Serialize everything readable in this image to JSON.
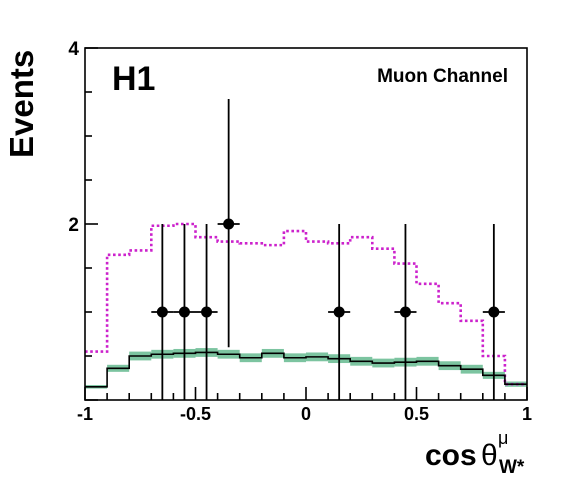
{
  "chart_data": {
    "type": "histogram",
    "experiment_label": "H1",
    "channel_label": "Muon Channel",
    "ylabel": "Events",
    "xlabel_main": "cos",
    "xlabel_theta": "θ",
    "xlabel_sup": "μ",
    "xlabel_sub": "W*",
    "xlim": [
      -1,
      1
    ],
    "ylim": [
      0,
      4
    ],
    "x_ticks": [
      -1,
      -0.5,
      0,
      0.5,
      1
    ],
    "x_tick_labels": [
      "-1",
      "-0.5",
      "0",
      "0.5",
      "1"
    ],
    "y_ticks": [
      2,
      4
    ],
    "y_tick_labels": [
      "2",
      "4"
    ],
    "bin_edges": [
      -1,
      -0.9,
      -0.8,
      -0.7,
      -0.6,
      -0.5,
      -0.4,
      -0.3,
      -0.2,
      -0.1,
      0,
      0.1,
      0.2,
      0.3,
      0.4,
      0.5,
      0.6,
      0.7,
      0.8,
      0.9,
      1
    ],
    "series": [
      {
        "kind": "dotted_step",
        "color": "#cc22cc",
        "values": [
          0.55,
          1.65,
          1.7,
          1.98,
          2.0,
          1.85,
          1.8,
          1.78,
          1.76,
          1.92,
          1.8,
          1.78,
          1.85,
          1.72,
          1.55,
          1.32,
          1.1,
          0.9,
          0.5,
          0.18
        ]
      },
      {
        "kind": "band_step",
        "line_color": "#000000",
        "band_color": "#7cc4a0",
        "values": [
          0.15,
          0.36,
          0.5,
          0.52,
          0.53,
          0.54,
          0.52,
          0.48,
          0.53,
          0.48,
          0.49,
          0.47,
          0.44,
          0.42,
          0.43,
          0.44,
          0.39,
          0.35,
          0.28,
          0.18
        ],
        "band_halfwidth": [
          0.02,
          0.04,
          0.05,
          0.05,
          0.05,
          0.05,
          0.05,
          0.05,
          0.05,
          0.05,
          0.05,
          0.05,
          0.05,
          0.05,
          0.05,
          0.05,
          0.05,
          0.05,
          0.04,
          0.03
        ]
      },
      {
        "kind": "data_points",
        "color": "#000000",
        "points": [
          {
            "x": -0.65,
            "y": 1,
            "xerr": 0.05,
            "ylow": 0,
            "yhigh": 2
          },
          {
            "x": -0.55,
            "y": 1,
            "xerr": 0.05,
            "ylow": 0,
            "yhigh": 2
          },
          {
            "x": -0.45,
            "y": 1,
            "xerr": 0.05,
            "ylow": 0,
            "yhigh": 2
          },
          {
            "x": -0.35,
            "y": 2,
            "xerr": 0.05,
            "ylow": 0.6,
            "yhigh": 3.42
          },
          {
            "x": 0.15,
            "y": 1,
            "xerr": 0.05,
            "ylow": 0,
            "yhigh": 2
          },
          {
            "x": 0.45,
            "y": 1,
            "xerr": 0.05,
            "ylow": 0,
            "yhigh": 2
          },
          {
            "x": 0.85,
            "y": 1,
            "xerr": 0.05,
            "ylow": 0,
            "yhigh": 2
          }
        ]
      }
    ]
  }
}
